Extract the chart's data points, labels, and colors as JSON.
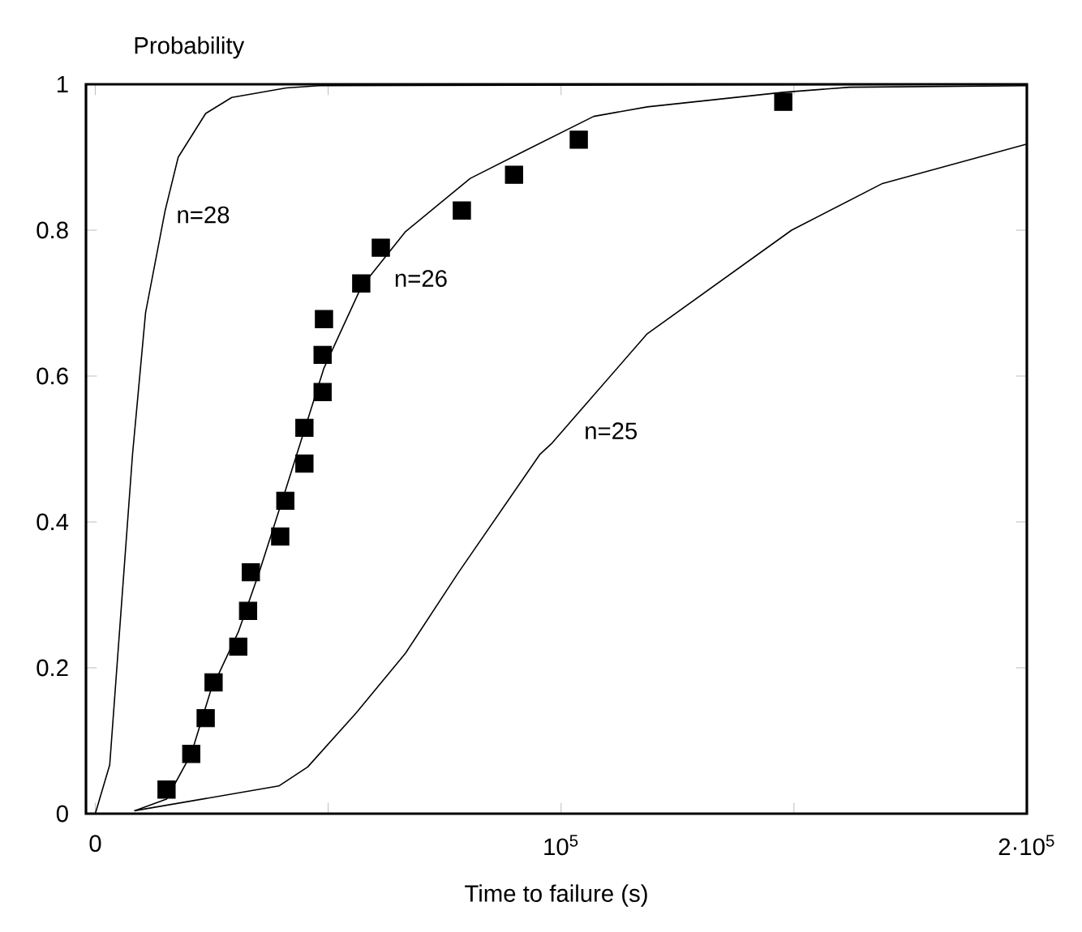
{
  "chart_data": {
    "type": "line",
    "xlabel": "Time to failure (s)",
    "ylabel": "Probability",
    "xlim": [
      -2000,
      200000
    ],
    "ylim": [
      0,
      1
    ],
    "xticks": [
      0,
      {
        "value": 50000,
        "label": null
      },
      {
        "value": 100000,
        "label": "10$^{5}$"
      },
      {
        "value": 150000,
        "label": null
      },
      {
        "value": 200000,
        "label": "2·10$^{5}$"
      }
    ],
    "yticks": [
      0,
      0.2,
      0.4,
      0.6,
      0.8,
      1
    ],
    "grid": false,
    "series": [
      {
        "name": "n=28",
        "color": "#000000",
        "marker": "none",
        "x": [
          0,
          3100,
          8000,
          10800,
          15000,
          17800,
          23700,
          29300,
          41000,
          48000,
          200000
        ],
        "values": [
          0,
          0.067,
          0.493,
          0.687,
          0.827,
          0.9,
          0.96,
          0.982,
          0.995,
          0.998,
          1
        ]
      },
      {
        "name": "n=26",
        "color": "#000000",
        "marker": "none",
        "x": [
          8400,
          15300,
          20600,
          24700,
          30700,
          35200,
          41100,
          49100,
          57100,
          66600,
          80500,
          92000,
          107000,
          118500,
          147700,
          162000,
          200000
        ],
        "values": [
          0.004,
          0.02,
          0.082,
          0.167,
          0.249,
          0.331,
          0.449,
          0.611,
          0.722,
          0.798,
          0.871,
          0.908,
          0.956,
          0.969,
          0.989,
          0.996,
          0.998
        ]
      },
      {
        "name": "n=25",
        "color": "#000000",
        "marker": "none",
        "x": [
          8400,
          39400,
          45600,
          56000,
          66600,
          78000,
          95500,
          97900,
          118500,
          149500,
          169000,
          200000
        ],
        "values": [
          0.004,
          0.038,
          0.064,
          0.138,
          0.22,
          0.331,
          0.493,
          0.507,
          0.658,
          0.8,
          0.864,
          0.918
        ]
      },
      {
        "type": "scatter",
        "color": "#000000",
        "marker": "square",
        "x": [
          15300,
          20600,
          23700,
          25400,
          30700,
          32800,
          33400,
          39700,
          40800,
          44900,
          44900,
          48800,
          48800,
          49100,
          57100,
          61300,
          78700,
          89900,
          103800,
          147700
        ],
        "values": [
          0.033,
          0.082,
          0.131,
          0.18,
          0.229,
          0.278,
          0.331,
          0.38,
          0.429,
          0.48,
          0.529,
          0.578,
          0.629,
          0.678,
          0.727,
          0.776,
          0.827,
          0.876,
          0.924,
          0.976
        ]
      }
    ]
  }
}
